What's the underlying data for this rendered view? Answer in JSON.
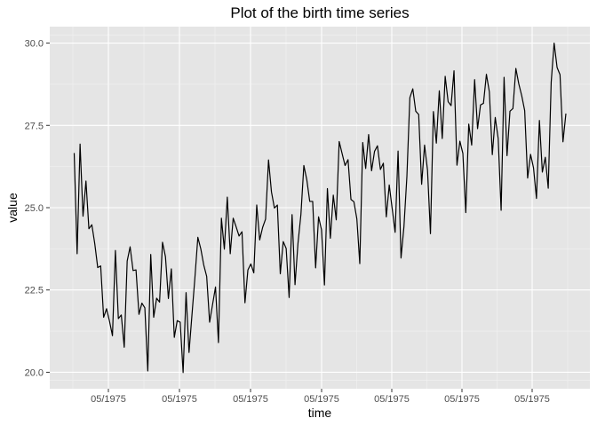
{
  "chart_data": {
    "type": "line",
    "title": "Plot of the birth time series",
    "xlabel": "time",
    "ylabel": "value",
    "x_tick_labels": [
      "05/1975",
      "05/1975",
      "05/1975",
      "05/1975",
      "05/1975",
      "05/1975",
      "05/1975"
    ],
    "y_ticks": [
      20.0,
      22.5,
      25.0,
      27.5,
      30.0
    ],
    "y_tick_labels": [
      "20.0",
      "22.5",
      "25.0",
      "27.5",
      "30.0"
    ],
    "ylim": [
      19.5,
      30.5
    ],
    "grid": true,
    "background": "#e5e5e5",
    "line_color": "#000000",
    "series": [
      {
        "values": [
          26.66,
          23.6,
          26.93,
          24.74,
          25.81,
          24.36,
          24.48,
          23.9,
          23.18,
          23.23,
          21.67,
          21.93,
          21.55,
          21.11,
          23.7,
          21.63,
          21.74,
          20.76,
          23.38,
          23.81,
          23.09,
          23.11,
          21.76,
          22.1,
          21.96,
          20.04,
          23.58,
          21.67,
          22.25,
          22.13,
          23.95,
          23.51,
          22.24,
          23.14,
          21.06,
          21.57,
          21.52,
          19.99,
          22.42,
          20.6,
          21.74,
          22.87,
          24.1,
          23.75,
          23.26,
          22.91,
          21.52,
          22.06,
          22.59,
          20.9,
          24.68,
          23.74,
          25.32,
          23.6,
          24.68,
          24.42,
          24.14,
          24.27,
          22.11,
          23.11,
          23.29,
          23.02,
          25.08,
          24.02,
          24.4,
          24.65,
          26.45,
          25.48,
          24.99,
          25.08,
          22.99,
          23.97,
          23.76,
          22.27,
          24.79,
          22.66,
          23.91,
          24.79,
          26.28,
          25.85,
          25.19,
          25.19,
          23.17,
          24.72,
          24.33,
          22.65,
          25.58,
          24.07,
          25.38,
          24.63,
          27.01,
          26.64,
          26.28,
          26.46,
          25.25,
          25.18,
          24.66,
          23.3,
          26.98,
          26.19,
          27.22,
          26.12,
          26.71,
          26.88,
          26.16,
          26.35,
          24.72,
          25.69,
          24.97,
          24.25,
          26.72,
          23.47,
          24.43,
          25.95,
          28.34,
          28.61,
          27.93,
          27.83,
          25.71,
          26.9,
          26.14,
          24.21,
          27.92,
          26.96,
          28.55,
          27.1,
          28.99,
          28.22,
          28.1,
          29.16,
          26.29,
          27.02,
          26.65,
          24.85,
          27.54,
          26.9,
          28.89,
          27.4,
          28.12,
          28.17,
          29.05,
          28.52,
          26.61,
          27.74,
          27.1,
          24.92,
          28.96,
          26.58,
          27.93,
          28.01,
          29.23,
          28.76,
          28.4,
          27.95,
          25.9,
          26.62,
          26.21,
          25.28,
          27.65,
          26.08,
          26.53,
          25.59,
          28.81,
          30.0,
          29.26,
          29.04,
          27.0,
          27.86
        ]
      }
    ]
  }
}
